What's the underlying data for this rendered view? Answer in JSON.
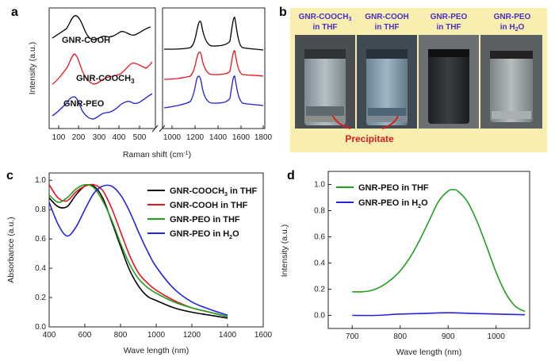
{
  "panels": {
    "a": {
      "label": "a",
      "ylabel": "Intensity (a.u.)",
      "xlabel": "Raman shift (cm",
      "xlabel_sup": "-1",
      "xlabel_close": ")",
      "ticks_left": [
        "100",
        "200",
        "300",
        "400",
        "500"
      ],
      "ticks_right": [
        "1000",
        "1200",
        "1400",
        "1600",
        "1800"
      ],
      "spectra": [
        {
          "name": "GNR-COOH",
          "color": "#000000"
        },
        {
          "name": "GNR-COOCH",
          "sub": "3",
          "color": "#e8141b"
        },
        {
          "name": "GNR-PEO",
          "color": "#1f1fd8"
        }
      ]
    },
    "b": {
      "label": "b",
      "background": "#f7eeb0",
      "vials": [
        {
          "line1": "GNR-COOCH",
          "sub": "3",
          "line2": "in THF"
        },
        {
          "line1": "GNR-COOH",
          "line2": "in THF"
        },
        {
          "line1": "GNR-PEO",
          "line2": "in THF"
        },
        {
          "line1": "GNR-PEO",
          "line2": "in H",
          "sub2": "2",
          "line2b": "O"
        }
      ],
      "precipitate": "Precipitate"
    },
    "c": {
      "label": "c"
    },
    "d": {
      "label": "d"
    }
  },
  "chart_data": [
    {
      "type": "line",
      "panel": "c",
      "ylabel": "Absorbance (a.u.)",
      "xlabel": "Wave length (nm)",
      "xlim": [
        400,
        1600
      ],
      "ylim": [
        0,
        1.05
      ],
      "xticks": [
        400,
        600,
        800,
        1000,
        1200,
        1400,
        1600
      ],
      "yticks": [
        0.0,
        0.2,
        0.4,
        0.6,
        0.8,
        1.0
      ],
      "legend": "top-right",
      "series": [
        {
          "name": "GNR-COOCH3 in THF",
          "label_main": "GNR-COOCH",
          "label_sub": "3",
          "label_tail": " in THF",
          "color": "#000000",
          "x": [
            400,
            450,
            500,
            550,
            600,
            650,
            700,
            750,
            800,
            850,
            900,
            950,
            1000,
            1100,
            1200,
            1300,
            1400
          ],
          "y": [
            0.88,
            0.82,
            0.82,
            0.9,
            0.96,
            0.96,
            0.88,
            0.72,
            0.55,
            0.39,
            0.28,
            0.21,
            0.18,
            0.13,
            0.1,
            0.08,
            0.06
          ]
        },
        {
          "name": "GNR-COOH in THF",
          "label_main": "GNR-COOH in THF",
          "color": "#e8141b",
          "x": [
            400,
            450,
            500,
            550,
            600,
            650,
            700,
            750,
            800,
            850,
            900,
            950,
            1000,
            1100,
            1200,
            1300,
            1400
          ],
          "y": [
            0.97,
            0.88,
            0.86,
            0.92,
            0.96,
            0.97,
            0.93,
            0.81,
            0.65,
            0.49,
            0.37,
            0.3,
            0.25,
            0.18,
            0.13,
            0.1,
            0.07
          ]
        },
        {
          "name": "GNR-PEO in THF",
          "label_main": "GNR-PEO in THF",
          "color": "#1fa01f",
          "x": [
            400,
            450,
            500,
            550,
            600,
            650,
            700,
            750,
            800,
            850,
            900,
            950,
            1000,
            1100,
            1200,
            1300,
            1400
          ],
          "y": [
            0.9,
            0.85,
            0.88,
            0.94,
            0.97,
            0.95,
            0.86,
            0.73,
            0.57,
            0.43,
            0.33,
            0.27,
            0.23,
            0.17,
            0.13,
            0.1,
            0.07
          ]
        },
        {
          "name": "GNR-PEO in H2O",
          "label_main": "GNR-PEO in H",
          "label_sub": "2",
          "label_tail": "O",
          "color": "#2323e0",
          "x": [
            400,
            450,
            500,
            550,
            600,
            650,
            700,
            750,
            800,
            850,
            900,
            950,
            1000,
            1100,
            1200,
            1300,
            1400
          ],
          "y": [
            0.85,
            0.7,
            0.62,
            0.68,
            0.8,
            0.91,
            0.96,
            0.96,
            0.9,
            0.79,
            0.65,
            0.52,
            0.41,
            0.26,
            0.17,
            0.12,
            0.08
          ]
        }
      ]
    },
    {
      "type": "line",
      "panel": "d",
      "ylabel": "Intensity (a.u.)",
      "xlabel": "Wave length (nm)",
      "xlim": [
        650,
        1070
      ],
      "ylim": [
        -0.1,
        1.1
      ],
      "xticks": [
        700,
        800,
        900,
        1000
      ],
      "yticks": [
        0.0,
        0.2,
        0.4,
        0.6,
        0.8,
        1.0
      ],
      "legend": "top-left",
      "series": [
        {
          "name": "GNR-PEO in THF",
          "label_main": "GNR-PEO in THF",
          "color": "#1fa01f",
          "x": [
            700,
            720,
            740,
            760,
            780,
            800,
            820,
            840,
            860,
            880,
            900,
            910,
            920,
            940,
            960,
            980,
            1000,
            1020,
            1040,
            1060
          ],
          "y": [
            0.18,
            0.18,
            0.19,
            0.22,
            0.27,
            0.34,
            0.44,
            0.57,
            0.72,
            0.87,
            0.95,
            0.96,
            0.95,
            0.87,
            0.72,
            0.53,
            0.33,
            0.17,
            0.07,
            0.03
          ]
        },
        {
          "name": "GNR-PEO in H2O",
          "label_main": "GNR-PEO in H",
          "label_sub": "2",
          "label_tail": "O",
          "color": "#2323e0",
          "x": [
            700,
            750,
            800,
            850,
            900,
            950,
            1000,
            1060
          ],
          "y": [
            0.0,
            0.0,
            0.01,
            0.015,
            0.02,
            0.015,
            0.01,
            0.005
          ]
        }
      ]
    }
  ]
}
